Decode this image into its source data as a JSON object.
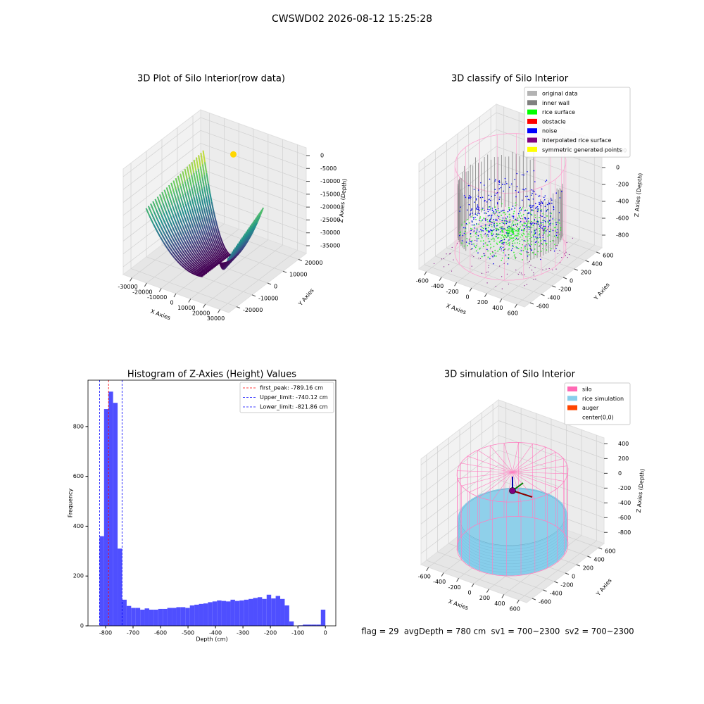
{
  "title": "CWSWD02 2026-08-12 15:25:28",
  "chart_data": [
    {
      "type": "surface3d",
      "title": "3D Plot of Silo Interior(row data)",
      "x_label": "X Axies",
      "y_label": "Y Axies",
      "z_label": "Z Axies (Depth)",
      "xlim": [
        -36000,
        36000
      ],
      "ylim": [
        -25000,
        25000
      ],
      "zlim": [
        -38000,
        3000
      ],
      "xticks": [
        -30000,
        -20000,
        -10000,
        0,
        10000,
        20000,
        30000
      ],
      "yticks": [
        -20000,
        -10000,
        0,
        10000,
        20000
      ],
      "zticks": [
        0,
        -5000,
        -10000,
        -15000,
        -20000,
        -25000,
        -30000,
        -35000
      ]
    },
    {
      "type": "scatter3d",
      "title": "3D classify of Silo Interior",
      "x_label": "X Axies",
      "y_label": "Y Axies",
      "z_label": "Z Axies (Depth)",
      "xlim": [
        -700,
        700
      ],
      "ylim": [
        -700,
        700
      ],
      "zlim": [
        -950,
        300
      ],
      "xticks": [
        -600,
        -400,
        -200,
        0,
        200,
        400,
        600
      ],
      "yticks": [
        -600,
        -400,
        -200,
        0,
        200,
        400,
        600
      ],
      "zticks": [
        200,
        0,
        -200,
        -400,
        -600,
        -800
      ],
      "legend": [
        {
          "name": "original data",
          "color": "#b3b3b3"
        },
        {
          "name": "inner wall",
          "color": "#808080"
        },
        {
          "name": "rice surface",
          "color": "#00ff00"
        },
        {
          "name": "obstacle",
          "color": "#ff0000"
        },
        {
          "name": "noise",
          "color": "#0000ff"
        },
        {
          "name": "interpolated rice surface",
          "color": "#800080"
        },
        {
          "name": "symmetric generated points",
          "color": "#ffff00"
        }
      ]
    },
    {
      "type": "histogram",
      "title": "Histogram of Z-Axies (Height) Values",
      "x_label": "Depth (cm)",
      "y_label": "Frequency",
      "color": "#4f4fff",
      "bins": [
        -822.0,
        -805.56,
        -789.12,
        -772.68,
        -756.24,
        -739.8,
        -723.36,
        -706.92,
        -690.48,
        -674.04,
        -657.6,
        -641.16,
        -624.72,
        -608.28,
        -591.84,
        -575.4,
        -558.96,
        -542.52,
        -526.08,
        -509.64,
        -493.2,
        -476.76,
        -460.32,
        -443.88,
        -427.44,
        -411.0,
        -394.56,
        -378.12,
        -361.68,
        -345.24,
        -328.8,
        -312.36,
        -295.92,
        -279.48,
        -263.04,
        -246.6,
        -230.16,
        -213.72,
        -197.28,
        -180.84,
        -164.4,
        -147.96,
        -131.52,
        -115.08,
        -98.64,
        -82.2,
        -65.76,
        -49.32,
        -32.88,
        -16.44,
        0
      ],
      "values": [
        360,
        870,
        940,
        895,
        310,
        105,
        80,
        72,
        72,
        65,
        70,
        65,
        65,
        68,
        68,
        72,
        72,
        75,
        75,
        72,
        82,
        85,
        88,
        90,
        95,
        98,
        102,
        100,
        98,
        105,
        100,
        102,
        105,
        108,
        112,
        115,
        108,
        125,
        110,
        120,
        108,
        82,
        18,
        0,
        2,
        5,
        5,
        5,
        5,
        65
      ],
      "xlim": [
        -864,
        38
      ],
      "ylim": [
        0,
        986
      ],
      "xticks": [
        -800,
        -700,
        -600,
        -500,
        -400,
        -300,
        -200,
        -100,
        0
      ],
      "yticks": [
        0,
        200,
        400,
        600,
        800
      ],
      "vlines": [
        {
          "name": "first_peak: -789.16 cm",
          "value": -789.16,
          "color": "#ff0000"
        },
        {
          "name": "Upper_limit: -740.12 cm",
          "value": -740.12,
          "color": "#0000ff"
        },
        {
          "name": "Lower_limit: -821.86 cm",
          "value": -821.86,
          "color": "#0000ff"
        }
      ]
    },
    {
      "type": "simulation3d",
      "title": "3D simulation of Silo Interior",
      "x_label": "X Axies",
      "y_label": "Y Axies",
      "z_label": "Z Axies (Depth)",
      "xlim": [
        -700,
        700
      ],
      "ylim": [
        -700,
        700
      ],
      "zlim": [
        -950,
        480
      ],
      "xticks": [
        -600,
        -400,
        -200,
        0,
        200,
        400,
        600
      ],
      "yticks": [
        -600,
        -400,
        -200,
        0,
        200,
        400,
        600
      ],
      "zticks": [
        400,
        200,
        0,
        -200,
        -400,
        -600,
        -800
      ],
      "legend": [
        {
          "name": "silo",
          "color": "#ff69b4"
        },
        {
          "name": "rice simulation",
          "color": "#87ceeb"
        },
        {
          "name": "auger",
          "color": "#ff4500"
        },
        {
          "name": "center(0,0)",
          "color": "#ffffff"
        }
      ],
      "annotation": "flag = 29  avgDepth = 780 cm  sv1 = 700~2300  sv2 = 700~2300"
    }
  ]
}
